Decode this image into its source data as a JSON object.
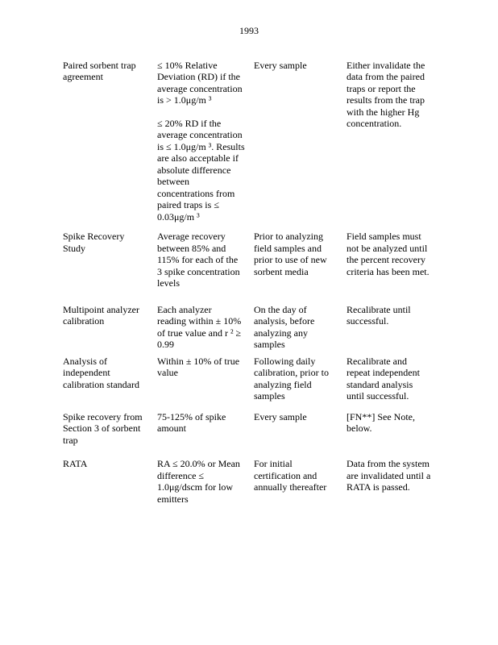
{
  "page": {
    "number": "1993"
  },
  "table": {
    "rows": [
      {
        "test": [
          "Paired sorbent trap",
          "agreement"
        ],
        "criteria": [
          [
            "≤ 10% Relative",
            "Deviation (RD) if the",
            "average concentration",
            "is > 1.0μg/m ³"
          ],
          [
            "≤ 20% RD if the",
            "average concentration",
            "is ≤ 1.0μg/m ³. Results",
            "are also acceptable if",
            "absolute difference",
            "between",
            "concentrations from",
            "paired traps is ≤",
            "0.03μg/m ³"
          ]
        ],
        "frequency": [
          "Every sample"
        ],
        "consequence": [
          "Either invalidate the",
          "data from the paired",
          "traps or report the",
          "results from the trap",
          "with the higher Hg",
          "concentration."
        ]
      },
      {
        "test": [
          "Spike Recovery",
          "Study"
        ],
        "criteria": [
          [
            "Average recovery",
            "between 85% and",
            "115% for each of the",
            "3 spike concentration",
            "levels"
          ]
        ],
        "frequency": [
          "Prior to analyzing",
          "field samples and",
          "prior to use of new",
          "sorbent media"
        ],
        "consequence": [
          "Field samples must",
          "not be analyzed until",
          "the percent recovery",
          "criteria has been met."
        ]
      },
      {
        "test": [
          "Multipoint analyzer",
          "calibration"
        ],
        "criteria": [
          [
            "Each analyzer",
            "reading within ± 10%",
            "of true value and r ² ≥",
            "0.99"
          ]
        ],
        "frequency": [
          "On the day of",
          "analysis, before",
          "analyzing any",
          "samples"
        ],
        "consequence": [
          "Recalibrate until",
          "successful."
        ]
      },
      {
        "test": [
          "Analysis of",
          "independent",
          "calibration standard"
        ],
        "criteria": [
          [
            "Within ± 10% of true",
            "value"
          ]
        ],
        "frequency": [
          "Following daily",
          "calibration, prior to",
          "analyzing field",
          "samples"
        ],
        "consequence": [
          "Recalibrate and",
          "repeat independent",
          "standard analysis",
          "until successful."
        ]
      },
      {
        "test": [
          "Spike recovery from",
          "Section 3 of sorbent",
          "trap"
        ],
        "criteria": [
          [
            "75-125% of spike",
            "amount"
          ]
        ],
        "frequency": [
          "Every sample"
        ],
        "consequence": [
          "[FN**] See Note,",
          "below."
        ]
      },
      {
        "test": [
          "RATA"
        ],
        "criteria": [
          [
            "RA ≤ 20.0% or Mean",
            "difference ≤",
            "1.0μg/dscm for low",
            "emitters"
          ]
        ],
        "frequency": [
          "For initial",
          "certification and",
          "annually thereafter"
        ],
        "consequence": [
          "Data from the system",
          "are invalidated until a",
          "RATA is passed."
        ]
      }
    ]
  }
}
